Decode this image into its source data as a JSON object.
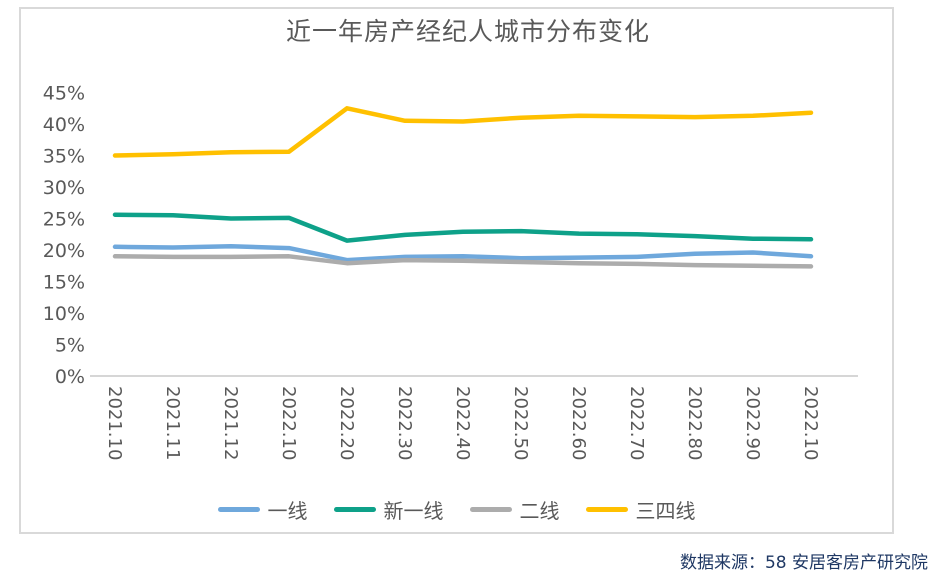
{
  "source": "数据来源：58 安居客房产研究院",
  "colors": {
    "axis_text": "#595959",
    "axis_line": "#D6D6D6",
    "frame_border": "#D9D9D9",
    "source_text": "#1F3864",
    "background": "#FFFFFF",
    "tier1_blue": "#6FA8DC",
    "new_tier1_green": "#0EA189",
    "tier2_gray": "#ACACAC",
    "tier34_yellow": "#FFC000"
  },
  "chart_data": {
    "type": "line",
    "title": "近一年房产经纪人城市分布变化",
    "categories": [
      "2021.10",
      "2021.11",
      "2021.12",
      "2022.10",
      "2022.20",
      "2022.30",
      "2022.40",
      "2022.50",
      "2022.60",
      "2022.70",
      "2022.80",
      "2022.90",
      "2022.10"
    ],
    "series": [
      {
        "key": "tier1",
        "name": "一线",
        "color": "#6FA8DC",
        "values": [
          20.5,
          20.4,
          20.6,
          20.3,
          18.4,
          18.9,
          19.0,
          18.7,
          18.8,
          18.9,
          19.4,
          19.6,
          19.0
        ]
      },
      {
        "key": "new-tier1",
        "name": "新一线",
        "color": "#0EA189",
        "values": [
          25.6,
          25.5,
          25.0,
          25.1,
          21.5,
          22.4,
          22.9,
          23.0,
          22.6,
          22.5,
          22.2,
          21.8,
          21.7
        ]
      },
      {
        "key": "tier2",
        "name": "二线",
        "color": "#ACACAC",
        "values": [
          19.0,
          18.9,
          18.9,
          19.0,
          17.9,
          18.4,
          18.3,
          18.1,
          17.9,
          17.8,
          17.6,
          17.5,
          17.4
        ]
      },
      {
        "key": "tier34",
        "name": "三四线",
        "color": "#FFC000",
        "values": [
          35.0,
          35.2,
          35.5,
          35.6,
          42.5,
          40.5,
          40.4,
          41.0,
          41.3,
          41.2,
          41.1,
          41.3,
          41.8
        ]
      }
    ],
    "xlabel": "",
    "ylabel": "",
    "ylim": [
      0,
      45
    ],
    "ytick_step": 5,
    "ytick_suffix": "%",
    "legend_position": "bottom",
    "grid": false
  }
}
